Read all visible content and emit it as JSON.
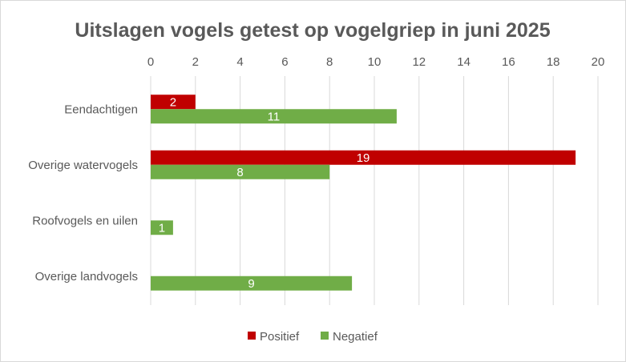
{
  "chart_data": {
    "type": "bar",
    "orientation": "horizontal",
    "title": "Uitslagen vogels getest op vogelgriep in juni 2025",
    "categories": [
      "Eendachtigen",
      "Overige watervogels",
      "Roofvogels en uilen",
      "Overige landvogels"
    ],
    "series": [
      {
        "name": "Positief",
        "color": "#C00000",
        "values": [
          2,
          19,
          null,
          null
        ]
      },
      {
        "name": "Negatief",
        "color": "#70AD47",
        "values": [
          11,
          8,
          1,
          9
        ]
      }
    ],
    "xlim": [
      0,
      20
    ],
    "xticks": [
      "0",
      "2",
      "4",
      "6",
      "8",
      "10",
      "12",
      "14",
      "16",
      "18",
      "20"
    ],
    "xlabel": "",
    "ylabel": "",
    "grid": true,
    "legend": "bottom"
  }
}
